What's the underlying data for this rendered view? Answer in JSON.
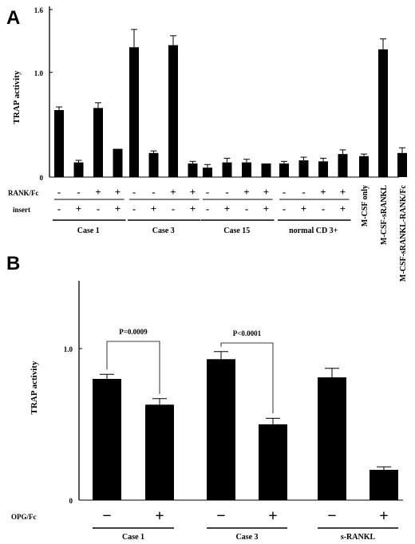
{
  "panels": {
    "a": "A",
    "b": "B"
  },
  "chart_data": [
    {
      "type": "bar",
      "panel": "A",
      "ylabel": "TRAP activity",
      "ylim": [
        0,
        1.6
      ],
      "yticks": [
        {
          "value": 0,
          "label": "0"
        },
        {
          "value": 1.0,
          "label": "1.0"
        },
        {
          "value": 1.6,
          "label": "1.6"
        }
      ],
      "row_labels": [
        "RANK/Fc",
        "insert"
      ],
      "groups": [
        {
          "label": "Case 1",
          "bars": [
            {
              "value": 0.64,
              "err": 0.03,
              "rank": "-",
              "insert": "-"
            },
            {
              "value": 0.14,
              "err": 0.02,
              "rank": "-",
              "insert": "+"
            },
            {
              "value": 0.66,
              "err": 0.05,
              "rank": "+",
              "insert": "-"
            },
            {
              "value": 0.27,
              "err": 0.0,
              "rank": "+",
              "insert": "+"
            }
          ]
        },
        {
          "label": "Case 3",
          "bars": [
            {
              "value": 1.24,
              "err": 0.17,
              "rank": "-",
              "insert": "-"
            },
            {
              "value": 0.23,
              "err": 0.02,
              "rank": "-",
              "insert": "+"
            },
            {
              "value": 1.26,
              "err": 0.09,
              "rank": "+",
              "insert": "-"
            },
            {
              "value": 0.13,
              "err": 0.02,
              "rank": "+",
              "insert": "+"
            }
          ]
        },
        {
          "label": "Case 15",
          "bars": [
            {
              "value": 0.09,
              "err": 0.03,
              "rank": "-",
              "insert": "-"
            },
            {
              "value": 0.14,
              "err": 0.04,
              "rank": "-",
              "insert": "+"
            },
            {
              "value": 0.14,
              "err": 0.03,
              "rank": "+",
              "insert": "-"
            },
            {
              "value": 0.13,
              "err": 0.0,
              "rank": "+",
              "insert": "+"
            }
          ]
        },
        {
          "label": "normal CD 3+",
          "bars": [
            {
              "value": 0.13,
              "err": 0.02,
              "rank": "-",
              "insert": "-"
            },
            {
              "value": 0.16,
              "err": 0.03,
              "rank": "-",
              "insert": "+"
            },
            {
              "value": 0.15,
              "err": 0.03,
              "rank": "+",
              "insert": "-"
            },
            {
              "value": 0.22,
              "err": 0.04,
              "rank": "+",
              "insert": "+"
            }
          ]
        }
      ],
      "controls": [
        {
          "label": "M-CSF only",
          "value": 0.2,
          "err": 0.02
        },
        {
          "label": "M-CSF-sRANKL",
          "value": 1.22,
          "err": 0.1
        },
        {
          "label": "M-CSF-sRANKL-RANK/Fc",
          "value": 0.23,
          "err": 0.05
        }
      ]
    },
    {
      "type": "bar",
      "panel": "B",
      "ylabel": "TRAP activity",
      "ylim": [
        0,
        1.3
      ],
      "yticks": [
        {
          "value": 0,
          "label": "0"
        },
        {
          "value": 1.0,
          "label": "1.0"
        }
      ],
      "row_label": "OPG/Fc",
      "groups": [
        {
          "label": "Case 1",
          "bars": [
            {
              "value": 0.8,
              "err": 0.03,
              "opg": "−"
            },
            {
              "value": 0.63,
              "err": 0.04,
              "opg": "+"
            }
          ]
        },
        {
          "label": "Case 3",
          "bars": [
            {
              "value": 0.93,
              "err": 0.05,
              "opg": "−"
            },
            {
              "value": 0.5,
              "err": 0.04,
              "opg": "+"
            }
          ]
        },
        {
          "label": "s-RANKL",
          "bars": [
            {
              "value": 0.81,
              "err": 0.06,
              "opg": "−"
            },
            {
              "value": 0.2,
              "err": 0.02,
              "opg": "+"
            }
          ]
        }
      ],
      "annotations": [
        {
          "text": "P=0.0009",
          "group": 0
        },
        {
          "text": "P<0.0001",
          "group": 1
        }
      ]
    }
  ]
}
